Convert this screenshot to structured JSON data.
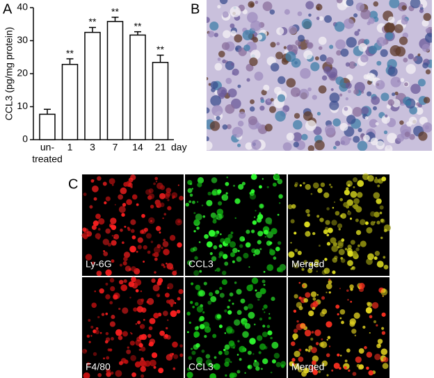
{
  "panels": {
    "a": "A",
    "b": "B",
    "c": "C"
  },
  "images": [
    {
      "label": "Ly-6G"
    },
    {
      "label": "CCL3"
    },
    {
      "label": "Merged"
    },
    {
      "label": "F4/80"
    },
    {
      "label": "CCL3"
    },
    {
      "label": "Merged"
    }
  ],
  "chart_data": {
    "type": "bar",
    "ylabel": "CCL3 (pg/mg protein)",
    "xlabel": "day",
    "categories": [
      [
        "un-",
        "treated"
      ],
      "1",
      "3",
      "7",
      "14",
      "21"
    ],
    "values": [
      7.7,
      22.8,
      32.5,
      35.8,
      31.7,
      23.4
    ],
    "errors": [
      1.5,
      1.7,
      1.5,
      1.3,
      1.0,
      2.2
    ],
    "annotations": [
      null,
      "**",
      "**",
      "**",
      "**",
      "**"
    ],
    "color": "#ffffff",
    "ylim": [
      0,
      40
    ],
    "yticks": [
      0,
      10,
      20,
      30,
      40
    ],
    "grid": false
  }
}
